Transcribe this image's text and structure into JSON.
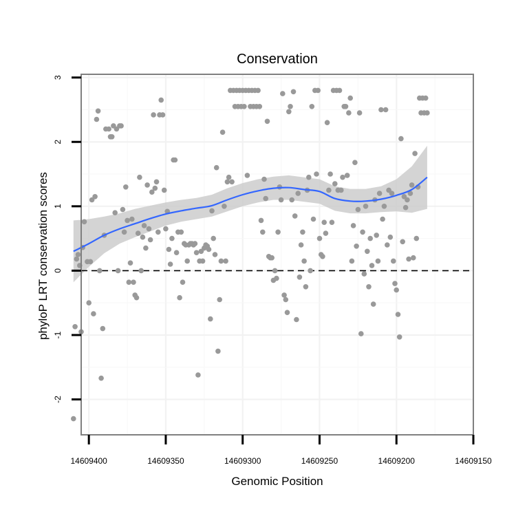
{
  "chart_data": {
    "type": "scatter",
    "title": "Conservation",
    "xlabel": "Genomic Position",
    "ylabel": "phyloP LRT conservation scores",
    "x_reversed": true,
    "xlim": [
      14609150,
      14609405
    ],
    "ylim": [
      -2.55,
      3.05
    ],
    "x_ticks": [
      14609400,
      14609350,
      14609300,
      14609250,
      14609200,
      14609150
    ],
    "x_tick_labels": [
      "14609400",
      "14609350",
      "14609300",
      "14609250",
      "14609200",
      "14609150"
    ],
    "y_ticks": [
      3,
      2,
      1,
      0,
      -1,
      -2
    ],
    "y_tick_labels": [
      "3",
      "2",
      "1",
      "0",
      "-1",
      "-2"
    ],
    "grid": true,
    "reference_line": {
      "y": 0,
      "style": "dashed",
      "color": "#000000"
    },
    "colors": {
      "points": "#999999",
      "smooth_line": "#3366ff",
      "confidence_band": "#cccccc",
      "panel_border": "#7f7f7f"
    },
    "points": [
      {
        "x": 14609410,
        "y": -2.3
      },
      {
        "x": 14609409,
        "y": -0.87
      },
      {
        "x": 14609408,
        "y": 0.18
      },
      {
        "x": 14609407,
        "y": 0.25
      },
      {
        "x": 14609406,
        "y": 0.08
      },
      {
        "x": 14609405,
        "y": -0.95
      },
      {
        "x": 14609404,
        "y": 0.36
      },
      {
        "x": 14609403,
        "y": 0.76
      },
      {
        "x": 14609401,
        "y": 0.14
      },
      {
        "x": 14609400,
        "y": -0.5
      },
      {
        "x": 14609399,
        "y": 0.14
      },
      {
        "x": 14609398,
        "y": 1.1
      },
      {
        "x": 14609397,
        "y": -0.67
      },
      {
        "x": 14609396,
        "y": 1.15
      },
      {
        "x": 14609395,
        "y": 2.35
      },
      {
        "x": 14609394,
        "y": 2.48
      },
      {
        "x": 14609393,
        "y": 0.0
      },
      {
        "x": 14609392,
        "y": -1.67
      },
      {
        "x": 14609391,
        "y": -0.9
      },
      {
        "x": 14609390,
        "y": 0.55
      },
      {
        "x": 14609389,
        "y": 2.2
      },
      {
        "x": 14609387,
        "y": 2.2
      },
      {
        "x": 14609386,
        "y": 2.08
      },
      {
        "x": 14609385,
        "y": 2.08
      },
      {
        "x": 14609384,
        "y": 2.25
      },
      {
        "x": 14609383,
        "y": 0.9
      },
      {
        "x": 14609382,
        "y": 2.2
      },
      {
        "x": 14609381,
        "y": 0.0
      },
      {
        "x": 14609380,
        "y": 2.25
      },
      {
        "x": 14609379,
        "y": 2.25
      },
      {
        "x": 14609378,
        "y": 0.95
      },
      {
        "x": 14609377,
        "y": 0.6
      },
      {
        "x": 14609376,
        "y": 1.3
      },
      {
        "x": 14609375,
        "y": 0.78
      },
      {
        "x": 14609374,
        "y": -0.18
      },
      {
        "x": 14609373,
        "y": 0.12
      },
      {
        "x": 14609372,
        "y": 0.8
      },
      {
        "x": 14609371,
        "y": -0.18
      },
      {
        "x": 14609370,
        "y": -0.38
      },
      {
        "x": 14609369,
        "y": -0.42
      },
      {
        "x": 14609368,
        "y": 0.58
      },
      {
        "x": 14609367,
        "y": 1.45
      },
      {
        "x": 14609366,
        "y": 0.0
      },
      {
        "x": 14609365,
        "y": 0.52
      },
      {
        "x": 14609364,
        "y": 0.7
      },
      {
        "x": 14609363,
        "y": 0.35
      },
      {
        "x": 14609362,
        "y": 1.33
      },
      {
        "x": 14609361,
        "y": 0.65
      },
      {
        "x": 14609360,
        "y": 0.48
      },
      {
        "x": 14609359,
        "y": 1.22
      },
      {
        "x": 14609358,
        "y": 2.42
      },
      {
        "x": 14609357,
        "y": 1.28
      },
      {
        "x": 14609356,
        "y": 1.38
      },
      {
        "x": 14609355,
        "y": 0.6
      },
      {
        "x": 14609354,
        "y": 2.42
      },
      {
        "x": 14609353,
        "y": 2.65
      },
      {
        "x": 14609352,
        "y": 2.42
      },
      {
        "x": 14609351,
        "y": 1.25
      },
      {
        "x": 14609350,
        "y": 0.65
      },
      {
        "x": 14609349,
        "y": 0.92
      },
      {
        "x": 14609348,
        "y": 0.33
      },
      {
        "x": 14609347,
        "y": 0.1
      },
      {
        "x": 14609346,
        "y": 0.5
      },
      {
        "x": 14609345,
        "y": 1.72
      },
      {
        "x": 14609344,
        "y": 1.72
      },
      {
        "x": 14609343,
        "y": 0.28
      },
      {
        "x": 14609342,
        "y": 0.6
      },
      {
        "x": 14609341,
        "y": -0.42
      },
      {
        "x": 14609340,
        "y": 0.6
      },
      {
        "x": 14609339,
        "y": -0.18
      },
      {
        "x": 14609338,
        "y": 0.42
      },
      {
        "x": 14609337,
        "y": 0.4
      },
      {
        "x": 14609336,
        "y": 0.15
      },
      {
        "x": 14609335,
        "y": 0.4
      },
      {
        "x": 14609334,
        "y": 0.42
      },
      {
        "x": 14609333,
        "y": 0.42
      },
      {
        "x": 14609332,
        "y": 0.4
      },
      {
        "x": 14609331,
        "y": 0.42
      },
      {
        "x": 14609330,
        "y": 0.28
      },
      {
        "x": 14609329,
        "y": -1.62
      },
      {
        "x": 14609328,
        "y": 0.15
      },
      {
        "x": 14609327,
        "y": 0.3
      },
      {
        "x": 14609326,
        "y": 0.15
      },
      {
        "x": 14609325,
        "y": 0.35
      },
      {
        "x": 14609324,
        "y": 0.4
      },
      {
        "x": 14609323,
        "y": 0.38
      },
      {
        "x": 14609322,
        "y": 0.33
      },
      {
        "x": 14609321,
        "y": -0.75
      },
      {
        "x": 14609320,
        "y": 0.93
      },
      {
        "x": 14609319,
        "y": 0.5
      },
      {
        "x": 14609318,
        "y": 0.25
      },
      {
        "x": 14609317,
        "y": 1.6
      },
      {
        "x": 14609316,
        "y": -1.25
      },
      {
        "x": 14609315,
        "y": -0.45
      },
      {
        "x": 14609314,
        "y": 0.15
      },
      {
        "x": 14609313,
        "y": 2.15
      },
      {
        "x": 14609312,
        "y": 1.0
      },
      {
        "x": 14609311,
        "y": 0.15
      },
      {
        "x": 14609310,
        "y": 1.38
      },
      {
        "x": 14609309,
        "y": 1.45
      },
      {
        "x": 14609308,
        "y": 2.8
      },
      {
        "x": 14609307,
        "y": 1.38
      },
      {
        "x": 14609306,
        "y": 2.8
      },
      {
        "x": 14609305,
        "y": 2.55
      },
      {
        "x": 14609304,
        "y": 2.8
      },
      {
        "x": 14609303,
        "y": 2.55
      },
      {
        "x": 14609302,
        "y": 2.8
      },
      {
        "x": 14609301,
        "y": 2.55
      },
      {
        "x": 14609300,
        "y": 2.8
      },
      {
        "x": 14609299,
        "y": 2.55
      },
      {
        "x": 14609298,
        "y": 2.8
      },
      {
        "x": 14609297,
        "y": 1.48
      },
      {
        "x": 14609296,
        "y": 2.8
      },
      {
        "x": 14609295,
        "y": 2.55
      },
      {
        "x": 14609294,
        "y": 2.8
      },
      {
        "x": 14609293,
        "y": 2.55
      },
      {
        "x": 14609292,
        "y": 2.8
      },
      {
        "x": 14609291,
        "y": 2.55
      },
      {
        "x": 14609290,
        "y": 2.8
      },
      {
        "x": 14609289,
        "y": 2.55
      },
      {
        "x": 14609288,
        "y": 0.78
      },
      {
        "x": 14609287,
        "y": 0.6
      },
      {
        "x": 14609286,
        "y": 1.42
      },
      {
        "x": 14609285,
        "y": 1.12
      },
      {
        "x": 14609284,
        "y": 2.32
      },
      {
        "x": 14609283,
        "y": 0.22
      },
      {
        "x": 14609282,
        "y": 0.2
      },
      {
        "x": 14609281,
        "y": 0.2
      },
      {
        "x": 14609280,
        "y": -0.15
      },
      {
        "x": 14609279,
        "y": 0.0
      },
      {
        "x": 14609278,
        "y": -0.12
      },
      {
        "x": 14609277,
        "y": 0.6
      },
      {
        "x": 14609276,
        "y": 1.3
      },
      {
        "x": 14609275,
        "y": 1.1
      },
      {
        "x": 14609274,
        "y": 2.75
      },
      {
        "x": 14609273,
        "y": -0.38
      },
      {
        "x": 14609272,
        "y": -0.45
      },
      {
        "x": 14609271,
        "y": -0.65
      },
      {
        "x": 14609270,
        "y": 2.47
      },
      {
        "x": 14609269,
        "y": 2.55
      },
      {
        "x": 14609268,
        "y": 1.1
      },
      {
        "x": 14609267,
        "y": 2.78
      },
      {
        "x": 14609266,
        "y": 0.85
      },
      {
        "x": 14609265,
        "y": -0.76
      },
      {
        "x": 14609264,
        "y": 1.2
      },
      {
        "x": 14609263,
        "y": -0.1
      },
      {
        "x": 14609262,
        "y": 0.4
      },
      {
        "x": 14609261,
        "y": 0.6
      },
      {
        "x": 14609260,
        "y": 0.15
      },
      {
        "x": 14609259,
        "y": -0.25
      },
      {
        "x": 14609258,
        "y": 1.25
      },
      {
        "x": 14609257,
        "y": 1.45
      },
      {
        "x": 14609256,
        "y": 0.0
      },
      {
        "x": 14609255,
        "y": 2.55
      },
      {
        "x": 14609254,
        "y": 0.8
      },
      {
        "x": 14609253,
        "y": 2.8
      },
      {
        "x": 14609252,
        "y": 1.5
      },
      {
        "x": 14609251,
        "y": 2.8
      },
      {
        "x": 14609250,
        "y": 0.5
      },
      {
        "x": 14609249,
        "y": 0.25
      },
      {
        "x": 14609248,
        "y": 0.22
      },
      {
        "x": 14609247,
        "y": 0.75
      },
      {
        "x": 14609246,
        "y": 0.58
      },
      {
        "x": 14609245,
        "y": 2.3
      },
      {
        "x": 14609244,
        "y": 1.25
      },
      {
        "x": 14609243,
        "y": 1.5
      },
      {
        "x": 14609242,
        "y": 0.75
      },
      {
        "x": 14609241,
        "y": 2.8
      },
      {
        "x": 14609240,
        "y": 1.35
      },
      {
        "x": 14609239,
        "y": 2.8
      },
      {
        "x": 14609238,
        "y": 1.25
      },
      {
        "x": 14609237,
        "y": 2.8
      },
      {
        "x": 14609236,
        "y": 1.25
      },
      {
        "x": 14609235,
        "y": 1.45
      },
      {
        "x": 14609234,
        "y": 2.55
      },
      {
        "x": 14609233,
        "y": 2.55
      },
      {
        "x": 14609232,
        "y": 1.48
      },
      {
        "x": 14609231,
        "y": 2.45
      },
      {
        "x": 14609230,
        "y": 2.68
      },
      {
        "x": 14609229,
        "y": 0.15
      },
      {
        "x": 14609228,
        "y": 0.7
      },
      {
        "x": 14609227,
        "y": 1.68
      },
      {
        "x": 14609226,
        "y": 0.38
      },
      {
        "x": 14609225,
        "y": 0.95
      },
      {
        "x": 14609224,
        "y": 2.45
      },
      {
        "x": 14609223,
        "y": -0.98
      },
      {
        "x": 14609222,
        "y": 0.6
      },
      {
        "x": 14609221,
        "y": -0.05
      },
      {
        "x": 14609220,
        "y": 1.0
      },
      {
        "x": 14609219,
        "y": 0.3
      },
      {
        "x": 14609218,
        "y": -0.25
      },
      {
        "x": 14609217,
        "y": 0.5
      },
      {
        "x": 14609216,
        "y": 0.08
      },
      {
        "x": 14609215,
        "y": -0.52
      },
      {
        "x": 14609214,
        "y": 1.1
      },
      {
        "x": 14609213,
        "y": 0.55
      },
      {
        "x": 14609212,
        "y": 0.15
      },
      {
        "x": 14609211,
        "y": 1.2
      },
      {
        "x": 14609210,
        "y": 2.5
      },
      {
        "x": 14609209,
        "y": 0.8
      },
      {
        "x": 14609208,
        "y": 1.0
      },
      {
        "x": 14609207,
        "y": 2.5
      },
      {
        "x": 14609206,
        "y": 0.4
      },
      {
        "x": 14609205,
        "y": 1.25
      },
      {
        "x": 14609204,
        "y": 0.52
      },
      {
        "x": 14609203,
        "y": 1.2
      },
      {
        "x": 14609202,
        "y": 0.15
      },
      {
        "x": 14609201,
        "y": -0.2
      },
      {
        "x": 14609200,
        "y": -0.3
      },
      {
        "x": 14609199,
        "y": -0.68
      },
      {
        "x": 14609198,
        "y": -1.03
      },
      {
        "x": 14609197,
        "y": 2.05
      },
      {
        "x": 14609196,
        "y": 0.45
      },
      {
        "x": 14609195,
        "y": 1.15
      },
      {
        "x": 14609194,
        "y": 0.98
      },
      {
        "x": 14609193,
        "y": 1.1
      },
      {
        "x": 14609192,
        "y": 0.18
      },
      {
        "x": 14609191,
        "y": 1.2
      },
      {
        "x": 14609190,
        "y": 1.33
      },
      {
        "x": 14609189,
        "y": 0.2
      },
      {
        "x": 14609188,
        "y": 1.82
      },
      {
        "x": 14609187,
        "y": 0.5
      },
      {
        "x": 14609186,
        "y": 1.3
      },
      {
        "x": 14609185,
        "y": 2.68
      },
      {
        "x": 14609184,
        "y": 2.45
      },
      {
        "x": 14609183,
        "y": 2.68
      },
      {
        "x": 14609182,
        "y": 2.45
      },
      {
        "x": 14609181,
        "y": 2.68
      },
      {
        "x": 14609180,
        "y": 2.45
      }
    ],
    "smooth": [
      {
        "x": 14609410,
        "y": 0.3
      },
      {
        "x": 14609400,
        "y": 0.42
      },
      {
        "x": 14609390,
        "y": 0.55
      },
      {
        "x": 14609380,
        "y": 0.65
      },
      {
        "x": 14609370,
        "y": 0.73
      },
      {
        "x": 14609360,
        "y": 0.81
      },
      {
        "x": 14609350,
        "y": 0.88
      },
      {
        "x": 14609340,
        "y": 0.93
      },
      {
        "x": 14609330,
        "y": 0.97
      },
      {
        "x": 14609320,
        "y": 1.01
      },
      {
        "x": 14609310,
        "y": 1.1
      },
      {
        "x": 14609300,
        "y": 1.18
      },
      {
        "x": 14609290,
        "y": 1.24
      },
      {
        "x": 14609280,
        "y": 1.28
      },
      {
        "x": 14609270,
        "y": 1.29
      },
      {
        "x": 14609260,
        "y": 1.26
      },
      {
        "x": 14609250,
        "y": 1.23
      },
      {
        "x": 14609240,
        "y": 1.12
      },
      {
        "x": 14609230,
        "y": 1.08
      },
      {
        "x": 14609220,
        "y": 1.08
      },
      {
        "x": 14609210,
        "y": 1.11
      },
      {
        "x": 14609200,
        "y": 1.17
      },
      {
        "x": 14609190,
        "y": 1.26
      },
      {
        "x": 14609180,
        "y": 1.45
      }
    ],
    "band_upper": [
      {
        "x": 14609410,
        "y": 0.78
      },
      {
        "x": 14609400,
        "y": 0.8
      },
      {
        "x": 14609390,
        "y": 0.84
      },
      {
        "x": 14609380,
        "y": 0.89
      },
      {
        "x": 14609370,
        "y": 0.96
      },
      {
        "x": 14609360,
        "y": 1.01
      },
      {
        "x": 14609350,
        "y": 1.06
      },
      {
        "x": 14609340,
        "y": 1.1
      },
      {
        "x": 14609330,
        "y": 1.13
      },
      {
        "x": 14609320,
        "y": 1.18
      },
      {
        "x": 14609310,
        "y": 1.28
      },
      {
        "x": 14609300,
        "y": 1.36
      },
      {
        "x": 14609290,
        "y": 1.42
      },
      {
        "x": 14609280,
        "y": 1.46
      },
      {
        "x": 14609270,
        "y": 1.48
      },
      {
        "x": 14609260,
        "y": 1.45
      },
      {
        "x": 14609250,
        "y": 1.42
      },
      {
        "x": 14609240,
        "y": 1.31
      },
      {
        "x": 14609230,
        "y": 1.27
      },
      {
        "x": 14609220,
        "y": 1.27
      },
      {
        "x": 14609210,
        "y": 1.31
      },
      {
        "x": 14609200,
        "y": 1.42
      },
      {
        "x": 14609190,
        "y": 1.62
      },
      {
        "x": 14609180,
        "y": 1.94
      }
    ],
    "band_lower": [
      {
        "x": 14609410,
        "y": -0.18
      },
      {
        "x": 14609400,
        "y": 0.06
      },
      {
        "x": 14609390,
        "y": 0.27
      },
      {
        "x": 14609380,
        "y": 0.42
      },
      {
        "x": 14609370,
        "y": 0.52
      },
      {
        "x": 14609360,
        "y": 0.61
      },
      {
        "x": 14609350,
        "y": 0.7
      },
      {
        "x": 14609340,
        "y": 0.76
      },
      {
        "x": 14609330,
        "y": 0.8
      },
      {
        "x": 14609320,
        "y": 0.84
      },
      {
        "x": 14609310,
        "y": 0.92
      },
      {
        "x": 14609300,
        "y": 1.0
      },
      {
        "x": 14609290,
        "y": 1.06
      },
      {
        "x": 14609280,
        "y": 1.1
      },
      {
        "x": 14609270,
        "y": 1.1
      },
      {
        "x": 14609260,
        "y": 1.07
      },
      {
        "x": 14609250,
        "y": 1.04
      },
      {
        "x": 14609240,
        "y": 0.93
      },
      {
        "x": 14609230,
        "y": 0.89
      },
      {
        "x": 14609220,
        "y": 0.89
      },
      {
        "x": 14609210,
        "y": 0.91
      },
      {
        "x": 14609200,
        "y": 0.92
      },
      {
        "x": 14609190,
        "y": 0.9
      },
      {
        "x": 14609180,
        "y": 0.96
      }
    ]
  }
}
